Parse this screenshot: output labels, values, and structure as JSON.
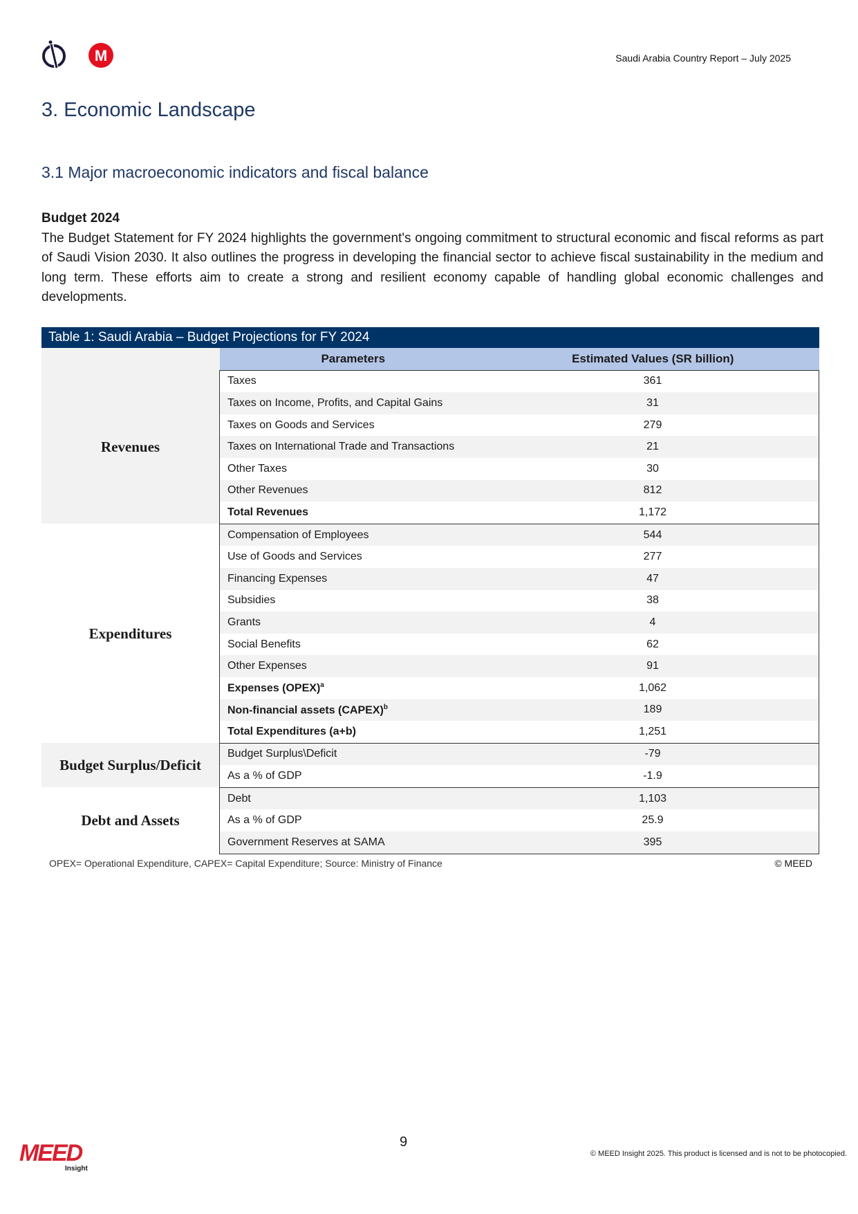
{
  "header": {
    "report_title": "Saudi Arabia Country Report – July 2025",
    "logos": [
      "circle-line-logo",
      "red-m-logo"
    ]
  },
  "section_title": "3. Economic Landscape",
  "subsection_title": "3.1 Major macroeconomic indicators and fiscal balance",
  "budget": {
    "heading": "Budget 2024",
    "paragraph": "The Budget Statement for FY 2024 highlights the government's ongoing commitment to structural economic and fiscal reforms as part of Saudi Vision 2030. It also outlines the progress in developing the financial sector to achieve fiscal sustainability in the medium and long term. These efforts aim to create a strong and resilient economy capable of handling global economic challenges and developments."
  },
  "table": {
    "title": "Table 1: Saudi Arabia – Budget Projections for FY 2024",
    "columns": [
      "Parameters",
      "Estimated Values (SR billion)"
    ],
    "groups": [
      {
        "label": "Revenues",
        "rows": [
          {
            "param": "Taxes",
            "value": "361"
          },
          {
            "param": "Taxes on Income, Profits, and Capital Gains",
            "value": "31"
          },
          {
            "param": "Taxes on Goods and Services",
            "value": "279"
          },
          {
            "param": "Taxes on International Trade and Transactions",
            "value": "21"
          },
          {
            "param": "Other Taxes",
            "value": "30"
          },
          {
            "param": "Other Revenues",
            "value": "812"
          },
          {
            "param": "Total Revenues",
            "value": "1,172"
          }
        ]
      },
      {
        "label": "Expenditures",
        "rows": [
          {
            "param": "Compensation of Employees",
            "value": "544"
          },
          {
            "param": "Use of Goods and Services",
            "value": "277"
          },
          {
            "param": "Financing Expenses",
            "value": "47"
          },
          {
            "param": "Subsidies",
            "value": "38"
          },
          {
            "param": "Grants",
            "value": "4"
          },
          {
            "param": "Social Benefits",
            "value": "62"
          },
          {
            "param": "Other Expenses",
            "value": "91"
          },
          {
            "param": "Expenses (OPEX)",
            "sup": "a",
            "value": "1,062"
          },
          {
            "param": "Non-financial assets (CAPEX)",
            "sup": "b",
            "value": "189"
          },
          {
            "param": "Total Expenditures (a+b)",
            "value": "1,251"
          }
        ]
      },
      {
        "label": "Budget Surplus/Deficit",
        "rows": [
          {
            "param": "Budget Surplus\\Deficit",
            "value": "-79"
          },
          {
            "param": "As a % of GDP",
            "value": "-1.9"
          }
        ]
      },
      {
        "label": "Debt and Assets",
        "rows": [
          {
            "param": "Debt",
            "value": "1,103"
          },
          {
            "param": "As a % of GDP",
            "value": "25.9"
          },
          {
            "param": "Government Reserves at SAMA",
            "value": "395"
          }
        ]
      }
    ],
    "footnote": "OPEX= Operational Expenditure, CAPEX= Capital Expenditure; Source: Ministry of Finance",
    "credit": "© MEED"
  },
  "footer": {
    "page_number": "9",
    "logo_text": "MEED",
    "logo_subtext": "Insight",
    "copyright": "© MEED Insight 2025. This product is licensed and is not to be photocopied."
  },
  "colors": {
    "heading": "#1f3864",
    "table_title_bg": "#003366",
    "table_header_bg": "#b4c6e7",
    "brand_red": "#d7202f"
  }
}
